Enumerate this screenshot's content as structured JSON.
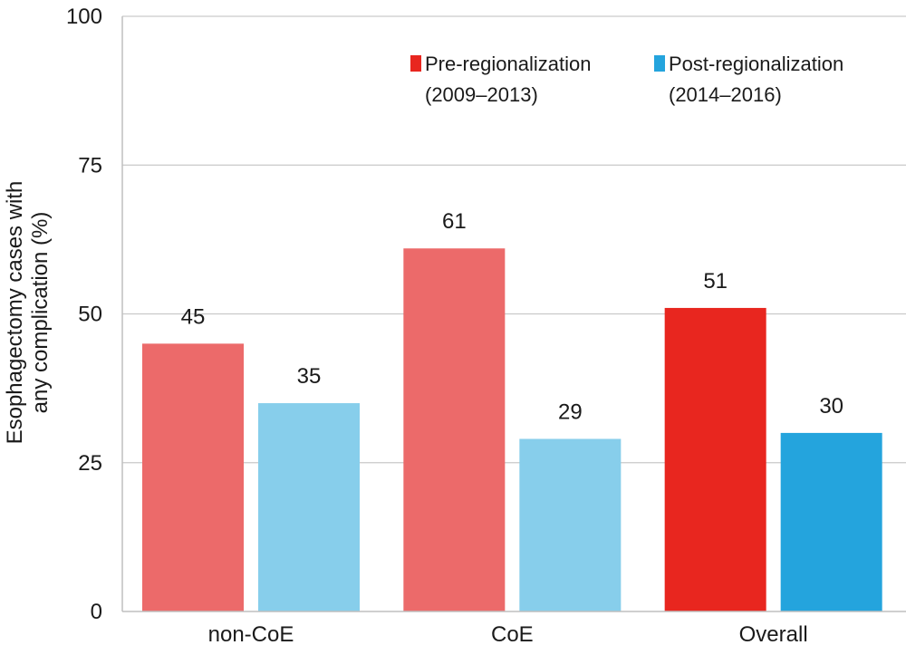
{
  "chart_data": {
    "type": "bar",
    "categories": [
      "non-CoE",
      "CoE",
      "Overall"
    ],
    "series": [
      {
        "name": "Pre-regionalization",
        "name_line2": "(2009–2013)",
        "values": [
          45,
          61,
          51
        ],
        "colors": [
          "#ec6a6a",
          "#ec6a6a",
          "#e8261f"
        ]
      },
      {
        "name": "Post-regionalization",
        "name_line2": "(2014–2016)",
        "values": [
          35,
          29,
          30
        ],
        "colors": [
          "#87ceeb",
          "#87ceeb",
          "#24a4dd"
        ]
      }
    ],
    "data_labels": [
      [
        "45",
        "61",
        "51"
      ],
      [
        "35",
        "29",
        "30"
      ]
    ],
    "title": "",
    "xlabel": "",
    "ylabel_line1": "Esophagectomy cases with",
    "ylabel_line2": "any complication (%)",
    "ylim": [
      0,
      100
    ],
    "yticks": [
      "0",
      "25",
      "50",
      "75",
      "100"
    ],
    "grid": true,
    "legend_position": "top-right"
  }
}
